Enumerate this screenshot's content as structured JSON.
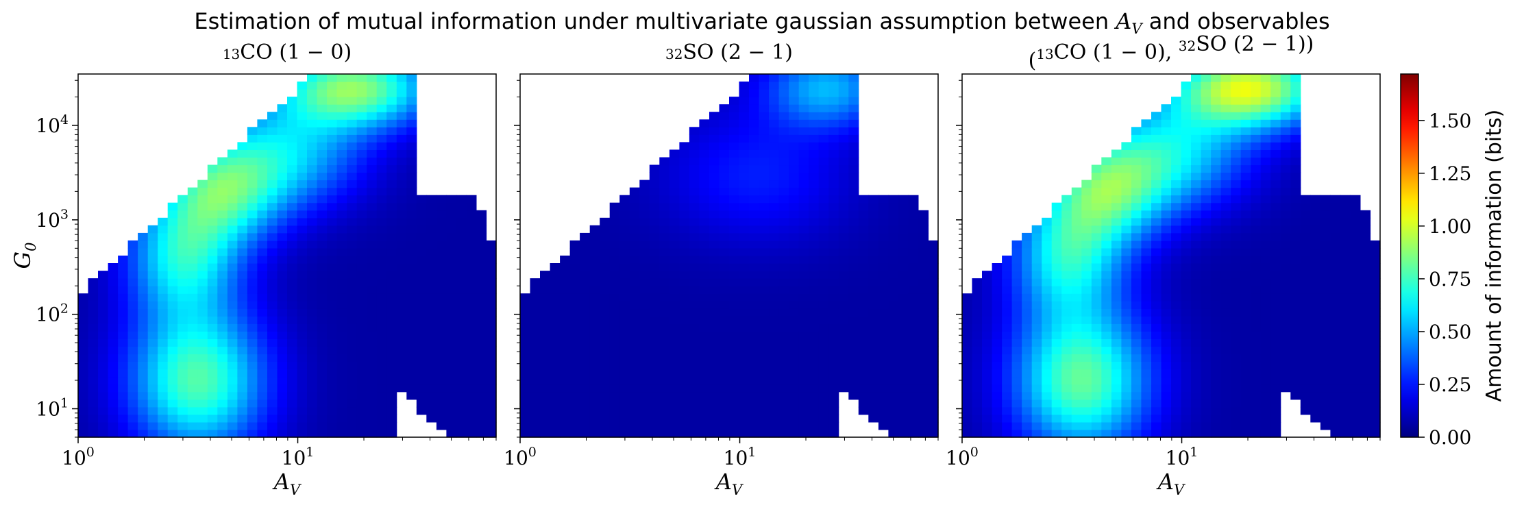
{
  "figure": {
    "title_prefix": "Estimation of mutual information under multivariate gaussian assumption between ",
    "title_var": "A",
    "title_var_sub": "V",
    "title_suffix": " and observables"
  },
  "chart_data": [
    {
      "type": "heatmap",
      "title_parts": [
        {
          "t": "13",
          "sup": true
        },
        {
          "t": "CO (1 − 0)"
        }
      ],
      "xlabel": "A",
      "xlabel_sub": "V",
      "ylabel": "G",
      "ylabel_sub": "0",
      "xscale": "log",
      "yscale": "log",
      "xlim": [
        1,
        80
      ],
      "ylim": [
        5,
        35000
      ],
      "xticks": [
        {
          "base": "10",
          "exp": "0"
        },
        {
          "base": "10",
          "exp": "1"
        }
      ],
      "yticks": [
        {
          "base": "10",
          "exp": "1"
        },
        {
          "base": "10",
          "exp": "2"
        },
        {
          "base": "10",
          "exp": "3"
        },
        {
          "base": "10",
          "exp": "4"
        }
      ],
      "grid": false,
      "hotspots": [
        {
          "x": 3.5,
          "y": 20,
          "mi": 0.72,
          "sx": 0.22,
          "sy": 0.55
        },
        {
          "x": 3.0,
          "y": 400,
          "mi": 0.55,
          "sx": 0.18,
          "sy": 0.45
        },
        {
          "x": 4.5,
          "y": 2000,
          "mi": 0.6,
          "sx": 0.2,
          "sy": 0.4
        },
        {
          "x": 18,
          "y": 25000,
          "mi": 0.8,
          "sx": 0.25,
          "sy": 0.3
        },
        {
          "x": 9,
          "y": 5000,
          "mi": 0.45,
          "sx": 0.25,
          "sy": 0.4
        }
      ]
    },
    {
      "type": "heatmap",
      "title_parts": [
        {
          "t": "32",
          "sup": true
        },
        {
          "t": "SO (2 − 1)"
        }
      ],
      "xlabel": "A",
      "xlabel_sub": "V",
      "ylabel": "",
      "ylabel_sub": "",
      "xscale": "log",
      "yscale": "log",
      "xlim": [
        1,
        80
      ],
      "ylim": [
        5,
        35000
      ],
      "xticks": [
        {
          "base": "10",
          "exp": "0"
        },
        {
          "base": "10",
          "exp": "1"
        }
      ],
      "yticks": [],
      "grid": false,
      "hotspots": [
        {
          "x": 25,
          "y": 25000,
          "mi": 0.45,
          "sx": 0.2,
          "sy": 0.3
        },
        {
          "x": 12,
          "y": 3000,
          "mi": 0.2,
          "sx": 0.3,
          "sy": 0.5
        }
      ]
    },
    {
      "type": "heatmap",
      "title_parts": [
        {
          "t": "("
        },
        {
          "t": "13",
          "sup": true
        },
        {
          "t": "CO (1 − 0), "
        },
        {
          "t": "32",
          "sup": true
        },
        {
          "t": "SO (2 − 1))"
        }
      ],
      "xlabel": "A",
      "xlabel_sub": "V",
      "ylabel": "",
      "ylabel_sub": "",
      "xscale": "log",
      "yscale": "log",
      "xlim": [
        1,
        80
      ],
      "ylim": [
        5,
        35000
      ],
      "xticks": [
        {
          "base": "10",
          "exp": "0"
        },
        {
          "base": "10",
          "exp": "1"
        }
      ],
      "yticks": [],
      "grid": false,
      "hotspots": [
        {
          "x": 3.5,
          "y": 20,
          "mi": 0.75,
          "sx": 0.22,
          "sy": 0.55
        },
        {
          "x": 3.0,
          "y": 400,
          "mi": 0.55,
          "sx": 0.18,
          "sy": 0.45
        },
        {
          "x": 4.5,
          "y": 2000,
          "mi": 0.62,
          "sx": 0.2,
          "sy": 0.4
        },
        {
          "x": 20,
          "y": 25000,
          "mi": 0.95,
          "sx": 0.25,
          "sy": 0.3
        },
        {
          "x": 9,
          "y": 5000,
          "mi": 0.5,
          "sx": 0.25,
          "sy": 0.4
        }
      ]
    }
  ],
  "colorbar": {
    "label": "Amount of information (bits)",
    "colormap": "jet",
    "range": [
      0,
      1.72
    ],
    "ticks": [
      "0.00",
      "0.25",
      "0.50",
      "0.75",
      "1.00",
      "1.25",
      "1.50"
    ]
  }
}
